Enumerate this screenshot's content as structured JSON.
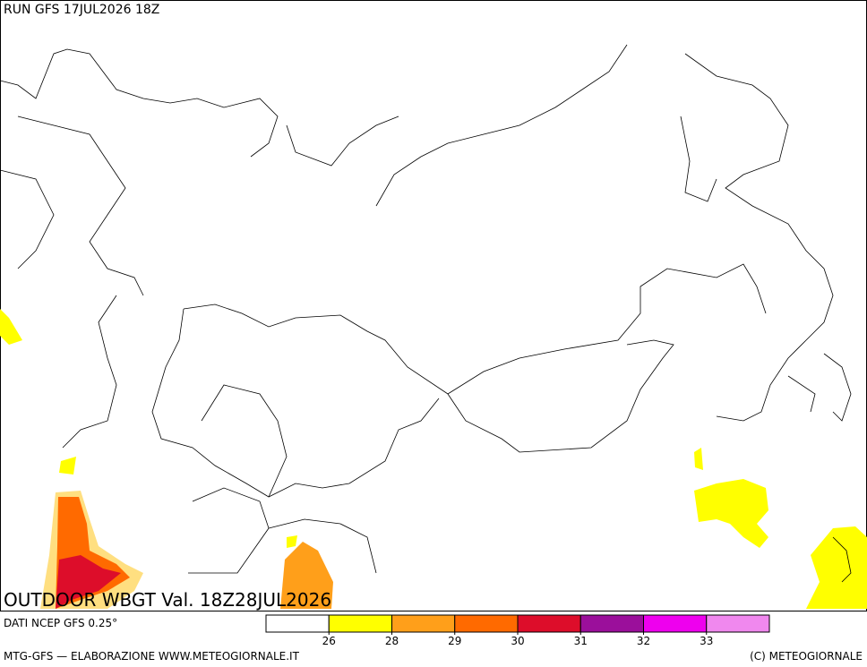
{
  "header": {
    "run": "RUN GFS 17JUL2026 18Z"
  },
  "map": {
    "title": "OUTDOOR WBGT Val. 18Z28JUL2026"
  },
  "footer": {
    "source": "DATI NCEP GFS 0.25°",
    "credit": "MTG-GFS — ELABORAZIONE WWW.METEOGIORNALE.IT",
    "copyright": "(C) METEOGIORNALE"
  },
  "legend": {
    "colors": [
      "#ffffff",
      "#ffff00",
      "#ff9f1a",
      "#ff6a00",
      "#dd0d2a",
      "#9b0f9b",
      "#ee00ee",
      "#f088ee"
    ],
    "ticks": [
      26,
      28,
      29,
      30,
      31,
      32,
      33
    ]
  }
}
